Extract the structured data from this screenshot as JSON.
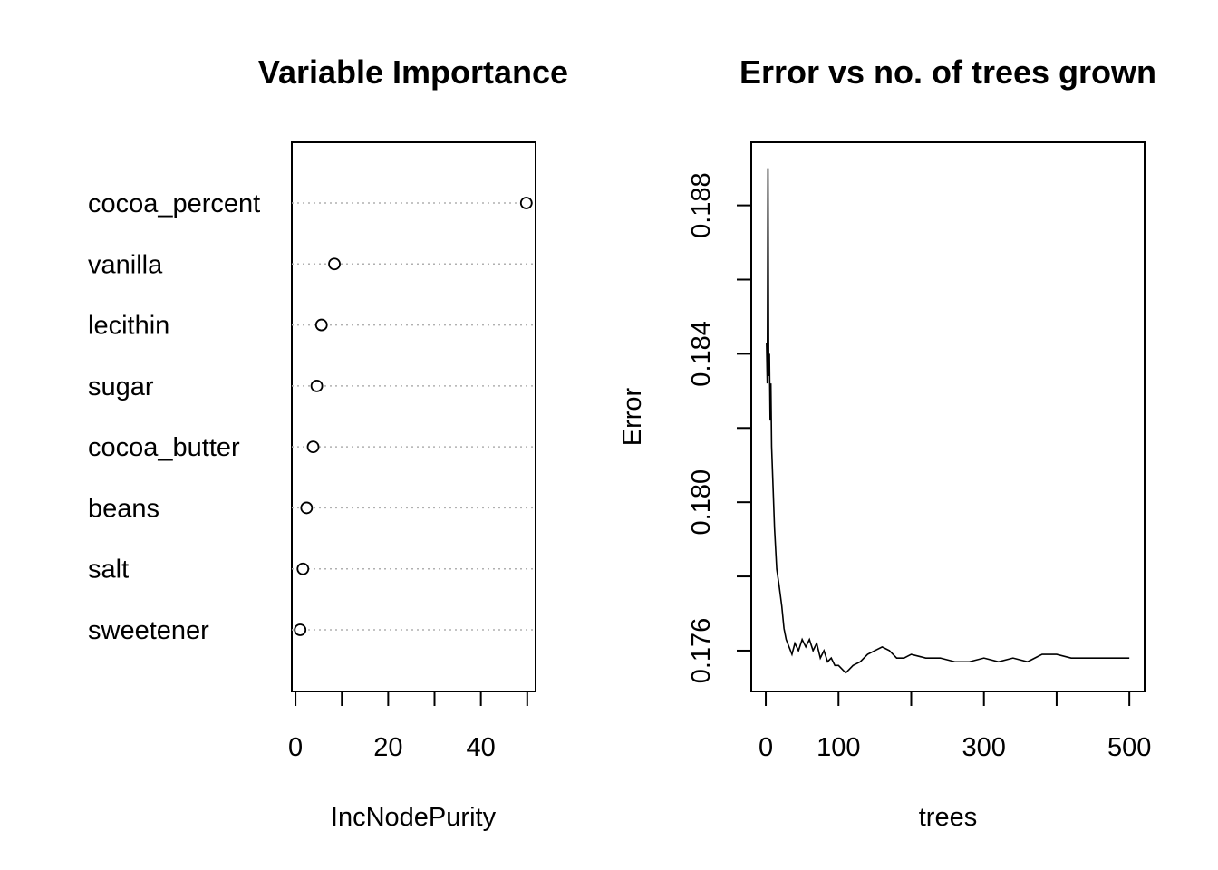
{
  "chart_data": [
    {
      "type": "scatter",
      "title": "Variable Importance",
      "xlabel": "IncNodePurity",
      "ylabel": "",
      "categories": [
        "cocoa_percent",
        "vanilla",
        "lecithin",
        "sugar",
        "cocoa_butter",
        "beans",
        "salt",
        "sweetener"
      ],
      "values": [
        49.8,
        8.4,
        5.6,
        4.6,
        3.8,
        2.4,
        1.6,
        1.0
      ],
      "xlim": [
        -0.8,
        51.8
      ],
      "xticks": [
        0,
        10,
        20,
        30,
        40,
        50
      ],
      "xtick_labels": [
        "0",
        "",
        "20",
        "",
        "40",
        ""
      ],
      "grid": "dotted horizontal lines per variable"
    },
    {
      "type": "line",
      "title": "Error vs no. of trees grown",
      "xlabel": "trees",
      "ylabel": "Error",
      "xlim": [
        -20,
        521
      ],
      "ylim": [
        0.1749,
        0.1897
      ],
      "xticks": [
        0,
        100,
        200,
        300,
        400,
        500
      ],
      "xtick_labels": [
        "0",
        "100",
        "",
        "300",
        "",
        "500"
      ],
      "yticks": [
        0.176,
        0.178,
        0.18,
        0.182,
        0.184,
        0.186,
        0.188
      ],
      "ytick_labels": [
        "0.176",
        "",
        "0.180",
        "",
        "0.184",
        "",
        "0.188"
      ],
      "series": [
        {
          "x": [
            1,
            2,
            3,
            4,
            5,
            6,
            7,
            8,
            10,
            12,
            15,
            18,
            22,
            25,
            28,
            32,
            36,
            40,
            45,
            50,
            55,
            60,
            65,
            70,
            75,
            80,
            85,
            90,
            95,
            100,
            105,
            110,
            115,
            120,
            130,
            140,
            150,
            160,
            170,
            180,
            190,
            200,
            220,
            240,
            260,
            280,
            300,
            320,
            340,
            360,
            380,
            400,
            420,
            440,
            460,
            480,
            500
          ],
          "y": [
            0.1843,
            0.1832,
            0.189,
            0.1834,
            0.184,
            0.1822,
            0.1832,
            0.1815,
            0.1804,
            0.1793,
            0.1782,
            0.1778,
            0.1772,
            0.1766,
            0.1763,
            0.1761,
            0.1759,
            0.1762,
            0.176,
            0.1763,
            0.1761,
            0.1763,
            0.176,
            0.1762,
            0.1758,
            0.176,
            0.1757,
            0.1758,
            0.1756,
            0.1756,
            0.1755,
            0.1754,
            0.1755,
            0.1756,
            0.1757,
            0.1759,
            0.176,
            0.1761,
            0.176,
            0.1758,
            0.1758,
            0.1759,
            0.1758,
            0.1758,
            0.1757,
            0.1757,
            0.1758,
            0.1757,
            0.1758,
            0.1757,
            0.1759,
            0.1759,
            0.1758,
            0.1758,
            0.1758,
            0.1758,
            0.1758
          ]
        }
      ]
    }
  ]
}
